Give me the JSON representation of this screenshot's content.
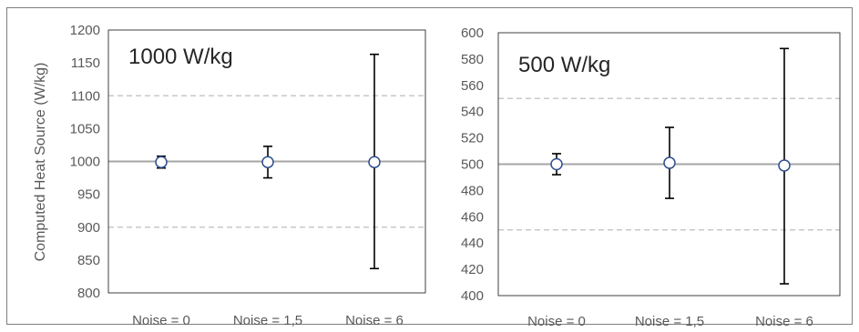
{
  "chart_data": [
    {
      "type": "scatter",
      "title": "1000 W/kg",
      "xlabel": "",
      "ylabel": "Computed Heat Source (W/kg)",
      "categories": [
        "Noise = 0",
        "Noise = 1,5",
        "Noise = 6"
      ],
      "values": [
        999,
        999,
        999
      ],
      "error_low": [
        990,
        975,
        837
      ],
      "error_high": [
        1008,
        1023,
        1163
      ],
      "reference_line": 1000,
      "limit_lines": [
        900,
        1100
      ],
      "ylim": [
        800,
        1200
      ],
      "yticks": [
        800,
        850,
        900,
        950,
        1000,
        1050,
        1100,
        1150,
        1200
      ],
      "grid": false,
      "colors": {
        "point_edge": "#2f4f8f",
        "error_bar": "#000000",
        "reference": "#a6a6a6",
        "limits": "#c8c8c8"
      }
    },
    {
      "type": "scatter",
      "title": "500 W/kg",
      "xlabel": "",
      "ylabel": "",
      "categories": [
        "Noise = 0",
        "Noise = 1,5",
        "Noise = 6"
      ],
      "values": [
        500,
        501,
        499
      ],
      "error_low": [
        492,
        474,
        409
      ],
      "error_high": [
        508,
        528,
        588
      ],
      "reference_line": 500,
      "limit_lines": [
        450,
        550
      ],
      "ylim": [
        400,
        600
      ],
      "yticks": [
        400,
        420,
        440,
        460,
        480,
        500,
        520,
        540,
        560,
        580,
        600
      ],
      "grid": false,
      "colors": {
        "point_edge": "#2f4f8f",
        "error_bar": "#000000",
        "reference": "#a6a6a6",
        "limits": "#c8c8c8"
      }
    }
  ]
}
